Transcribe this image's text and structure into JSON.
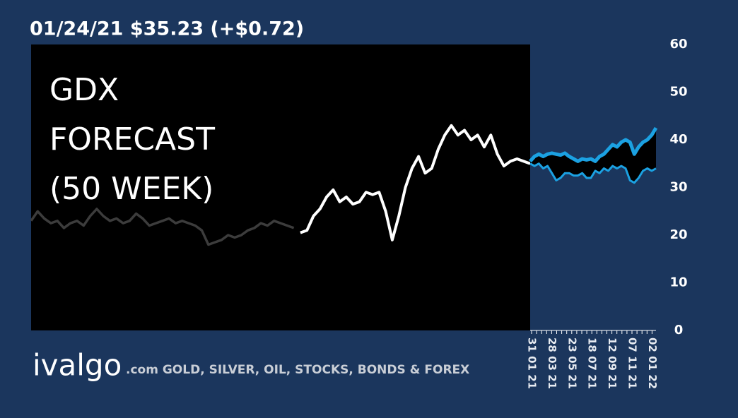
{
  "chart_data": {
    "type": "line",
    "title": "01/24/21 $35.23 (+$0.72)",
    "headline": [
      "GDX",
      "FORECAST",
      "(50 WEEK)"
    ],
    "brand": "ivalgo",
    "tagline": ".com GOLD, SILVER, OIL, STOCKS, BONDS & FOREX",
    "ylim": [
      0,
      60
    ],
    "yticks": [
      0,
      10,
      20,
      30,
      40,
      50,
      60
    ],
    "xtick_labels": [
      "31 01 21",
      "28 03 21",
      "23 05 21",
      "18 07 21",
      "12 09 21",
      "07 11 21",
      "02 01 22"
    ],
    "history": [
      {
        "color": "#3c3c3c",
        "values": [
          23,
          25,
          23.5,
          22.5,
          23,
          21.5,
          22.5,
          23,
          22,
          24,
          25.5,
          24,
          23,
          23.5,
          22.5,
          23,
          24.5,
          23.5,
          22,
          22.5,
          23,
          23.5,
          22.5,
          23,
          22.5,
          22,
          21,
          18,
          18.5,
          19,
          20,
          19.5,
          20,
          21,
          21.5,
          22.5,
          22,
          23,
          22.5,
          22,
          21.5
        ]
      },
      {
        "color": "#ffffff",
        "values": [
          20.5,
          21,
          24,
          25.5,
          28,
          29.5,
          27,
          28,
          26.5,
          27,
          29,
          28.5,
          29,
          25,
          19,
          24,
          30,
          34,
          36.5,
          33,
          34,
          38,
          41,
          43,
          41,
          42,
          40,
          41,
          38.5,
          41,
          37,
          34.5,
          35.5,
          36,
          35.5,
          35
        ]
      }
    ],
    "forecast": [
      {
        "color": "#1ba1e2",
        "values": [
          35.5,
          36.5,
          37,
          36.5,
          37,
          37.2,
          37,
          36.8,
          37.2,
          36.5,
          36,
          35.5,
          36,
          35.8,
          36,
          35.5,
          36.5,
          37,
          38,
          39,
          38.5,
          39.5,
          40,
          39.5,
          37,
          38.5,
          39.5,
          40,
          41,
          42.5
        ]
      },
      {
        "color": "#1ba1e2",
        "values": [
          35,
          34.5,
          35,
          34,
          34.5,
          33,
          31.5,
          32,
          33,
          33,
          32.5,
          32.5,
          33,
          32,
          32,
          33.5,
          33,
          34,
          33.5,
          34.5,
          34,
          34.5,
          34,
          31.5,
          31,
          32,
          33.5,
          34,
          33.5,
          34
        ]
      }
    ]
  }
}
